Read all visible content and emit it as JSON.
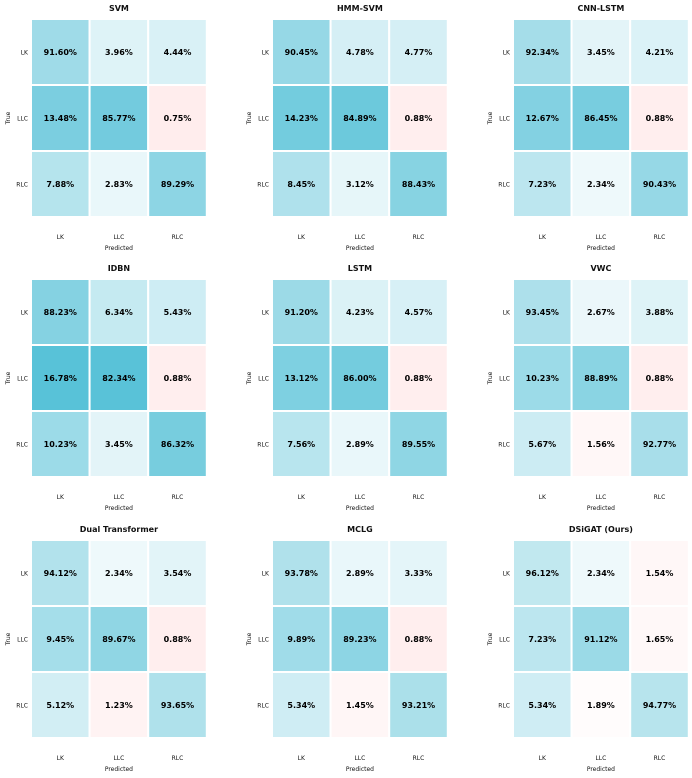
{
  "chart_data": {
    "type": "heatmap",
    "rows": [
      "LK",
      "LLC",
      "RLC"
    ],
    "cols": [
      "LK",
      "LLC",
      "RLC"
    ],
    "xlabel": "Predicted",
    "ylabel": "True",
    "value_format": "percent, 2 decimals",
    "colormap": {
      "low_negative": "#ffecec",
      "mid": "#ffffff",
      "high": "#56c1d7"
    },
    "panels": [
      {
        "title": "SVM",
        "matrix": [
          [
            91.6,
            3.96,
            4.44
          ],
          [
            13.48,
            85.77,
            0.75
          ],
          [
            7.88,
            2.83,
            89.29
          ]
        ]
      },
      {
        "title": "HMM-SVM",
        "matrix": [
          [
            90.45,
            4.78,
            4.77
          ],
          [
            14.23,
            84.89,
            0.88
          ],
          [
            8.45,
            3.12,
            88.43
          ]
        ]
      },
      {
        "title": "CNN-LSTM",
        "matrix": [
          [
            92.34,
            3.45,
            4.21
          ],
          [
            12.67,
            86.45,
            0.88
          ],
          [
            7.23,
            2.34,
            90.43
          ]
        ]
      },
      {
        "title": "IDBN",
        "matrix": [
          [
            88.23,
            6.34,
            5.43
          ],
          [
            16.78,
            82.34,
            0.88
          ],
          [
            10.23,
            3.45,
            86.32
          ]
        ]
      },
      {
        "title": "LSTM",
        "matrix": [
          [
            91.2,
            4.23,
            4.57
          ],
          [
            13.12,
            86.0,
            0.88
          ],
          [
            7.56,
            2.89,
            89.55
          ]
        ]
      },
      {
        "title": "VWC",
        "matrix": [
          [
            93.45,
            2.67,
            3.88
          ],
          [
            10.23,
            88.89,
            0.88
          ],
          [
            5.67,
            1.56,
            92.77
          ]
        ]
      },
      {
        "title": "Dual Transformer",
        "matrix": [
          [
            94.12,
            2.34,
            3.54
          ],
          [
            9.45,
            89.67,
            0.88
          ],
          [
            5.12,
            1.23,
            93.65
          ]
        ]
      },
      {
        "title": "MCLG",
        "matrix": [
          [
            93.78,
            2.89,
            3.33
          ],
          [
            9.89,
            89.23,
            0.88
          ],
          [
            5.34,
            1.45,
            93.21
          ]
        ]
      },
      {
        "title": "DSiGAT (Ours)",
        "matrix": [
          [
            96.12,
            2.34,
            1.54
          ],
          [
            7.23,
            91.12,
            1.65
          ],
          [
            5.34,
            1.89,
            94.77
          ]
        ]
      }
    ]
  }
}
